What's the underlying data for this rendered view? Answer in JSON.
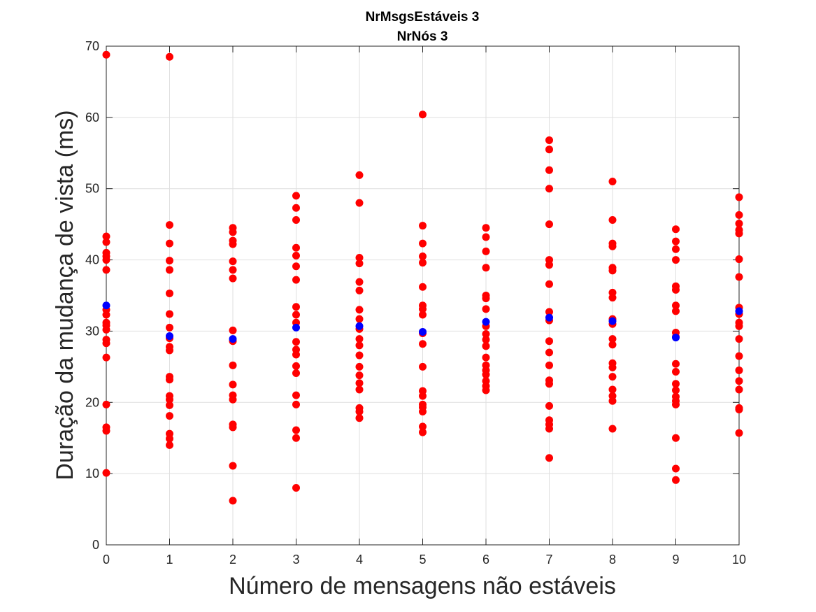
{
  "chart_data": {
    "type": "scatter",
    "title": [
      "NrMsgsEstáveis 3",
      "NrNós 3"
    ],
    "xlabel": "Número de mensagens não estáveis",
    "ylabel": "Duração da mudança de vista (ms)",
    "xlim": [
      0,
      10
    ],
    "ylim": [
      0,
      70
    ],
    "xticks": [
      0,
      1,
      2,
      3,
      4,
      5,
      6,
      7,
      8,
      9,
      10
    ],
    "yticks": [
      0,
      10,
      20,
      30,
      40,
      50,
      60,
      70
    ],
    "grid": true,
    "legend": "none",
    "series": [
      {
        "color": "#ff0000",
        "points": [
          [
            0,
            68.8
          ],
          [
            0,
            43.3
          ],
          [
            0,
            42.5
          ],
          [
            0,
            41.0
          ],
          [
            0,
            40.5
          ],
          [
            0,
            40.0
          ],
          [
            0,
            38.6
          ],
          [
            0,
            33.0
          ],
          [
            0,
            32.3
          ],
          [
            0,
            31.2
          ],
          [
            0,
            30.8
          ],
          [
            0,
            30.2
          ],
          [
            0,
            28.8
          ],
          [
            0,
            28.3
          ],
          [
            0,
            26.3
          ],
          [
            0,
            19.7
          ],
          [
            0,
            16.5
          ],
          [
            0,
            16.0
          ],
          [
            0,
            10.1
          ],
          [
            1,
            68.5
          ],
          [
            1,
            44.9
          ],
          [
            1,
            42.3
          ],
          [
            1,
            39.9
          ],
          [
            1,
            38.6
          ],
          [
            1,
            35.3
          ],
          [
            1,
            32.4
          ],
          [
            1,
            30.5
          ],
          [
            1,
            29.0
          ],
          [
            1,
            27.8
          ],
          [
            1,
            27.3
          ],
          [
            1,
            23.6
          ],
          [
            1,
            23.2
          ],
          [
            1,
            20.9
          ],
          [
            1,
            20.4
          ],
          [
            1,
            19.6
          ],
          [
            1,
            18.1
          ],
          [
            1,
            15.6
          ],
          [
            1,
            14.9
          ],
          [
            1,
            14.0
          ],
          [
            2,
            44.5
          ],
          [
            2,
            43.9
          ],
          [
            2,
            42.7
          ],
          [
            2,
            42.2
          ],
          [
            2,
            39.8
          ],
          [
            2,
            38.6
          ],
          [
            2,
            37.4
          ],
          [
            2,
            30.1
          ],
          [
            2,
            28.6
          ],
          [
            2,
            25.2
          ],
          [
            2,
            22.5
          ],
          [
            2,
            21.0
          ],
          [
            2,
            20.4
          ],
          [
            2,
            16.9
          ],
          [
            2,
            16.5
          ],
          [
            2,
            11.1
          ],
          [
            2,
            6.2
          ],
          [
            3,
            49.0
          ],
          [
            3,
            47.3
          ],
          [
            3,
            45.6
          ],
          [
            3,
            41.7
          ],
          [
            3,
            40.6
          ],
          [
            3,
            39.1
          ],
          [
            3,
            37.2
          ],
          [
            3,
            33.4
          ],
          [
            3,
            32.3
          ],
          [
            3,
            31.2
          ],
          [
            3,
            28.5
          ],
          [
            3,
            27.4
          ],
          [
            3,
            26.7
          ],
          [
            3,
            25.1
          ],
          [
            3,
            24.1
          ],
          [
            3,
            21.0
          ],
          [
            3,
            19.7
          ],
          [
            3,
            16.1
          ],
          [
            3,
            15.0
          ],
          [
            3,
            8.0
          ],
          [
            4,
            51.9
          ],
          [
            4,
            48.0
          ],
          [
            4,
            40.3
          ],
          [
            4,
            39.5
          ],
          [
            4,
            36.9
          ],
          [
            4,
            35.7
          ],
          [
            4,
            33.0
          ],
          [
            4,
            31.7
          ],
          [
            4,
            30.3
          ],
          [
            4,
            28.9
          ],
          [
            4,
            28.0
          ],
          [
            4,
            26.6
          ],
          [
            4,
            25.0
          ],
          [
            4,
            23.8
          ],
          [
            4,
            22.7
          ],
          [
            4,
            21.8
          ],
          [
            4,
            19.2
          ],
          [
            4,
            18.7
          ],
          [
            4,
            17.8
          ],
          [
            5,
            60.4
          ],
          [
            5,
            44.8
          ],
          [
            5,
            42.3
          ],
          [
            5,
            40.5
          ],
          [
            5,
            39.6
          ],
          [
            5,
            36.2
          ],
          [
            5,
            33.6
          ],
          [
            5,
            33.1
          ],
          [
            5,
            32.3
          ],
          [
            5,
            29.7
          ],
          [
            5,
            28.2
          ],
          [
            5,
            25.0
          ],
          [
            5,
            21.6
          ],
          [
            5,
            20.9
          ],
          [
            5,
            19.7
          ],
          [
            5,
            19.3
          ],
          [
            5,
            18.7
          ],
          [
            5,
            16.6
          ],
          [
            5,
            15.8
          ],
          [
            6,
            44.5
          ],
          [
            6,
            43.2
          ],
          [
            6,
            41.2
          ],
          [
            6,
            38.9
          ],
          [
            6,
            35.0
          ],
          [
            6,
            34.6
          ],
          [
            6,
            33.1
          ],
          [
            6,
            30.7
          ],
          [
            6,
            29.6
          ],
          [
            6,
            28.8
          ],
          [
            6,
            27.9
          ],
          [
            6,
            26.3
          ],
          [
            6,
            25.2
          ],
          [
            6,
            24.5
          ],
          [
            6,
            23.9
          ],
          [
            6,
            23.0
          ],
          [
            6,
            22.3
          ],
          [
            6,
            21.7
          ],
          [
            7,
            56.8
          ],
          [
            7,
            55.5
          ],
          [
            7,
            52.6
          ],
          [
            7,
            50.0
          ],
          [
            7,
            45.0
          ],
          [
            7,
            40.0
          ],
          [
            7,
            39.3
          ],
          [
            7,
            36.6
          ],
          [
            7,
            32.7
          ],
          [
            7,
            31.5
          ],
          [
            7,
            28.6
          ],
          [
            7,
            27.0
          ],
          [
            7,
            25.2
          ],
          [
            7,
            23.1
          ],
          [
            7,
            22.6
          ],
          [
            7,
            19.5
          ],
          [
            7,
            17.5
          ],
          [
            7,
            16.9
          ],
          [
            7,
            16.3
          ],
          [
            7,
            12.2
          ],
          [
            8,
            51.0
          ],
          [
            8,
            45.6
          ],
          [
            8,
            42.3
          ],
          [
            8,
            41.9
          ],
          [
            8,
            38.9
          ],
          [
            8,
            38.5
          ],
          [
            8,
            35.4
          ],
          [
            8,
            34.7
          ],
          [
            8,
            31.7
          ],
          [
            8,
            31.0
          ],
          [
            8,
            28.9
          ],
          [
            8,
            28.1
          ],
          [
            8,
            25.5
          ],
          [
            8,
            24.9
          ],
          [
            8,
            23.6
          ],
          [
            8,
            21.8
          ],
          [
            8,
            20.9
          ],
          [
            8,
            20.2
          ],
          [
            8,
            16.3
          ],
          [
            9,
            44.3
          ],
          [
            9,
            42.6
          ],
          [
            9,
            41.5
          ],
          [
            9,
            40.0
          ],
          [
            9,
            36.3
          ],
          [
            9,
            35.8
          ],
          [
            9,
            33.6
          ],
          [
            9,
            32.8
          ],
          [
            9,
            29.8
          ],
          [
            9,
            29.2
          ],
          [
            9,
            25.4
          ],
          [
            9,
            24.3
          ],
          [
            9,
            22.6
          ],
          [
            9,
            21.7
          ],
          [
            9,
            20.8
          ],
          [
            9,
            20.2
          ],
          [
            9,
            19.7
          ],
          [
            9,
            15.0
          ],
          [
            9,
            10.7
          ],
          [
            9,
            9.1
          ],
          [
            10,
            48.8
          ],
          [
            10,
            46.3
          ],
          [
            10,
            45.1
          ],
          [
            10,
            44.2
          ],
          [
            10,
            43.7
          ],
          [
            10,
            40.1
          ],
          [
            10,
            37.6
          ],
          [
            10,
            33.3
          ],
          [
            10,
            32.4
          ],
          [
            10,
            31.2
          ],
          [
            10,
            30.7
          ],
          [
            10,
            28.9
          ],
          [
            10,
            26.5
          ],
          [
            10,
            24.5
          ],
          [
            10,
            23.0
          ],
          [
            10,
            21.8
          ],
          [
            10,
            19.2
          ],
          [
            10,
            19.0
          ],
          [
            10,
            15.7
          ]
        ]
      },
      {
        "color": "#0000ff",
        "points": [
          [
            0,
            33.6
          ],
          [
            1,
            29.3
          ],
          [
            2,
            28.9
          ],
          [
            3,
            30.5
          ],
          [
            4,
            30.7
          ],
          [
            5,
            29.9
          ],
          [
            6,
            31.3
          ],
          [
            7,
            31.9
          ],
          [
            8,
            31.4
          ],
          [
            9,
            29.1
          ],
          [
            10,
            32.8
          ]
        ]
      }
    ]
  }
}
